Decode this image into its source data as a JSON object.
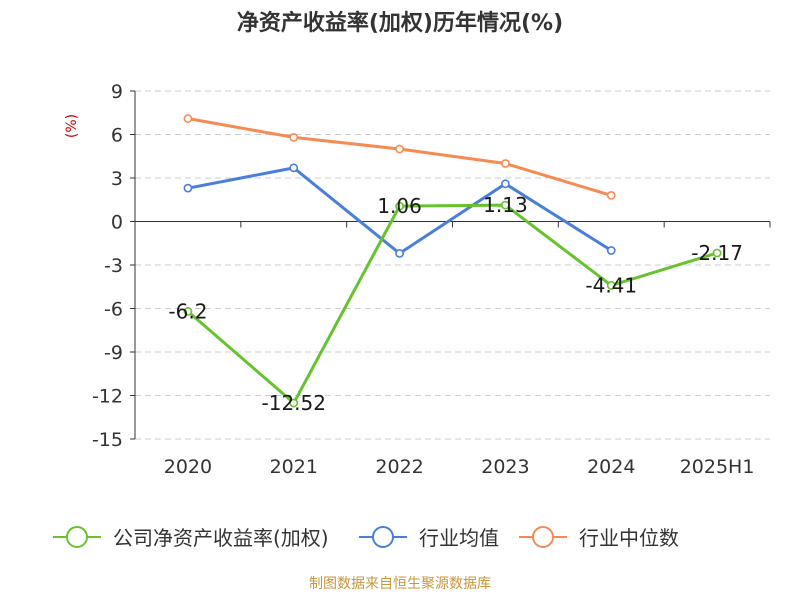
{
  "chart_data": {
    "type": "line",
    "title": "净资产收益率(加权)历年情况(%)",
    "ylabel": "(%)",
    "xlabel": "",
    "categories": [
      "2020",
      "2021",
      "2022",
      "2023",
      "2024",
      "2025H1"
    ],
    "ylim": [
      -15,
      9
    ],
    "yticks": [
      9,
      6,
      3,
      0,
      -3,
      -6,
      -9,
      -12,
      -15
    ],
    "grid": true,
    "legend_position": "bottom",
    "series": [
      {
        "name": "公司净资产收益率(加权)",
        "color": "#66c22e",
        "values": [
          -6.2,
          -12.52,
          1.06,
          1.13,
          -4.41,
          -2.17
        ],
        "labels": [
          "-6.2",
          "-12.52",
          "1.06",
          "1.13",
          "-4.41",
          "-2.17"
        ]
      },
      {
        "name": "行业均值",
        "color": "#4a7edb",
        "values": [
          2.3,
          3.7,
          -2.2,
          2.6,
          -2.0,
          null
        ]
      },
      {
        "name": "行业中位数",
        "color": "#f58b52",
        "values": [
          7.1,
          5.8,
          5.0,
          4.0,
          1.8,
          null
        ]
      }
    ]
  },
  "source": "制图数据来自恒生聚源数据库"
}
